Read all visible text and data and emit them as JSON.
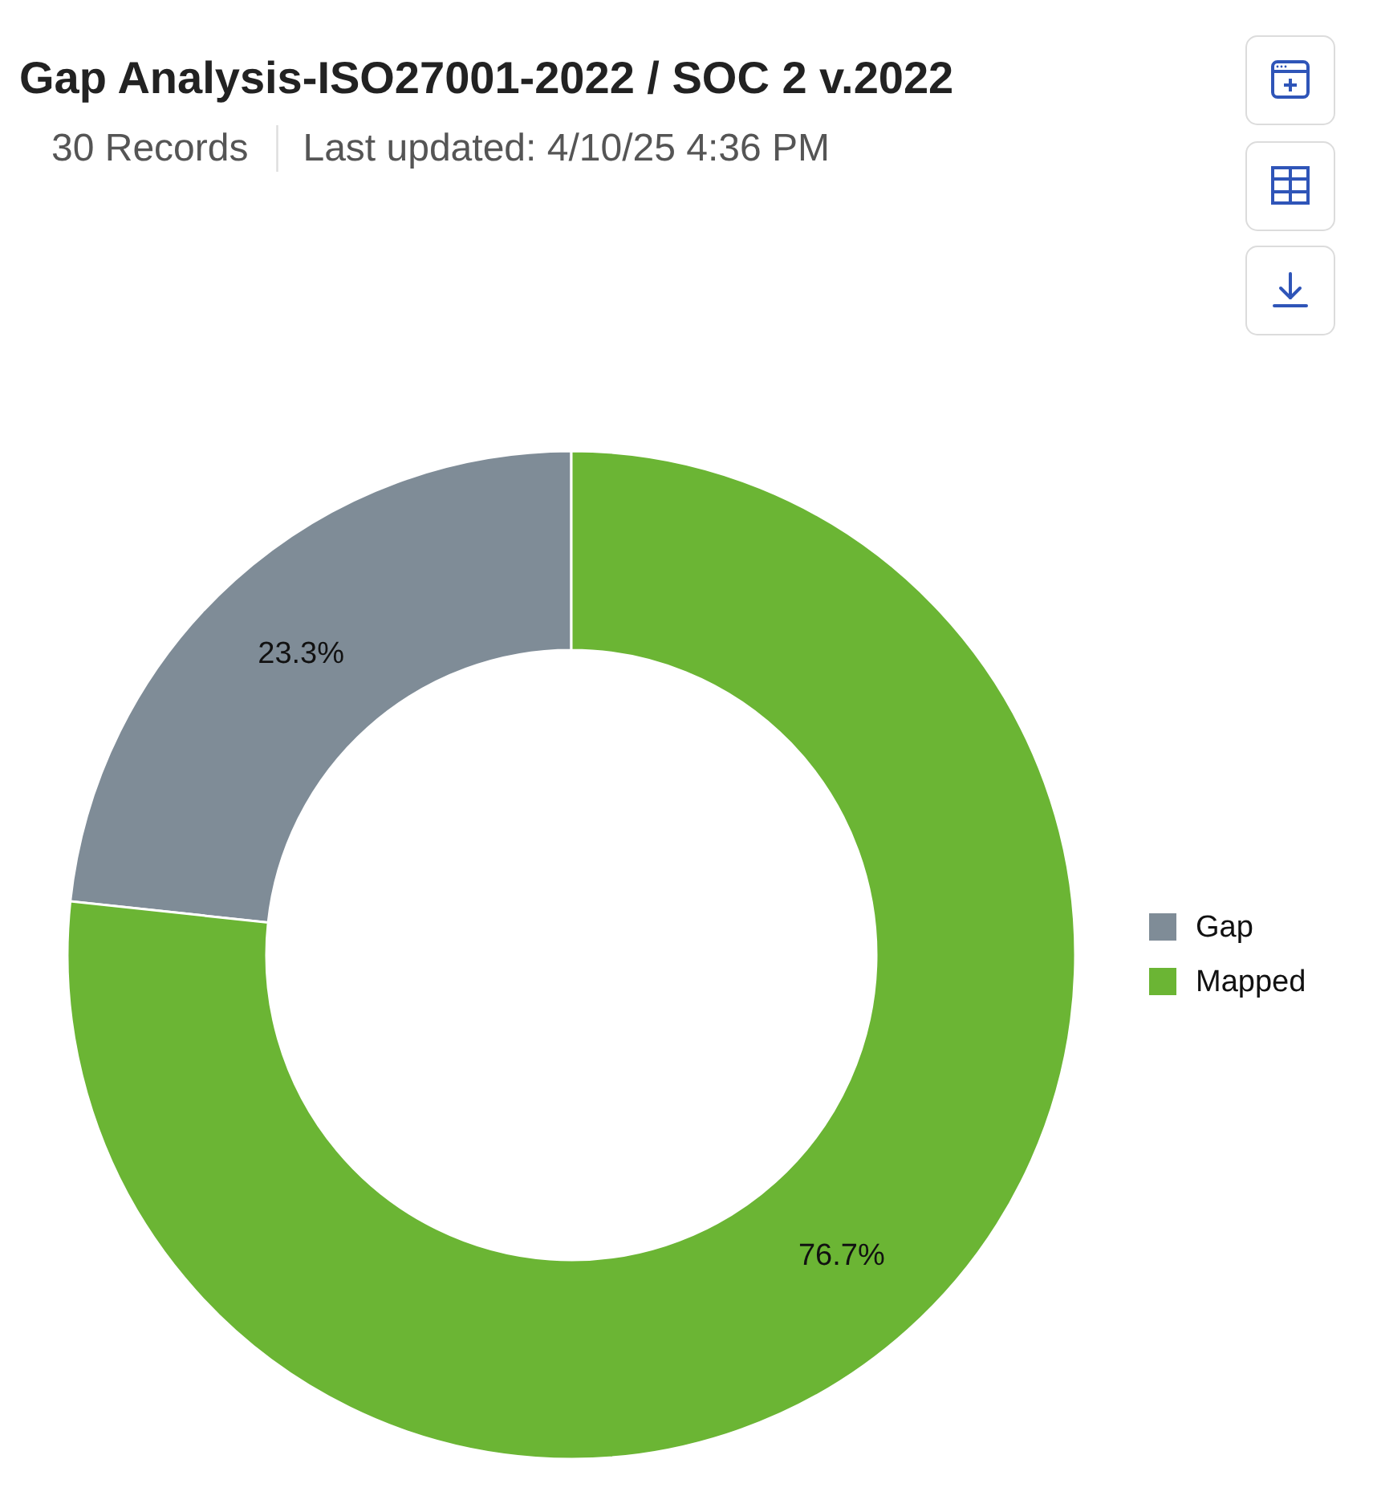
{
  "chart_data": {
    "type": "donut",
    "title": "Gap Analysis-ISO27001-2022 / SOC 2 v.2022",
    "subtitle": "30 Records",
    "annotations": [
      "Last updated: 4/10/25 4:36 PM"
    ],
    "categories": [
      "Gap",
      "Mapped"
    ],
    "values": [
      23.3,
      76.7
    ],
    "colors": [
      "#7f8c97",
      "#6bb534"
    ],
    "value_labels": [
      "23.3%",
      "76.7%"
    ],
    "legend": "right"
  }
}
